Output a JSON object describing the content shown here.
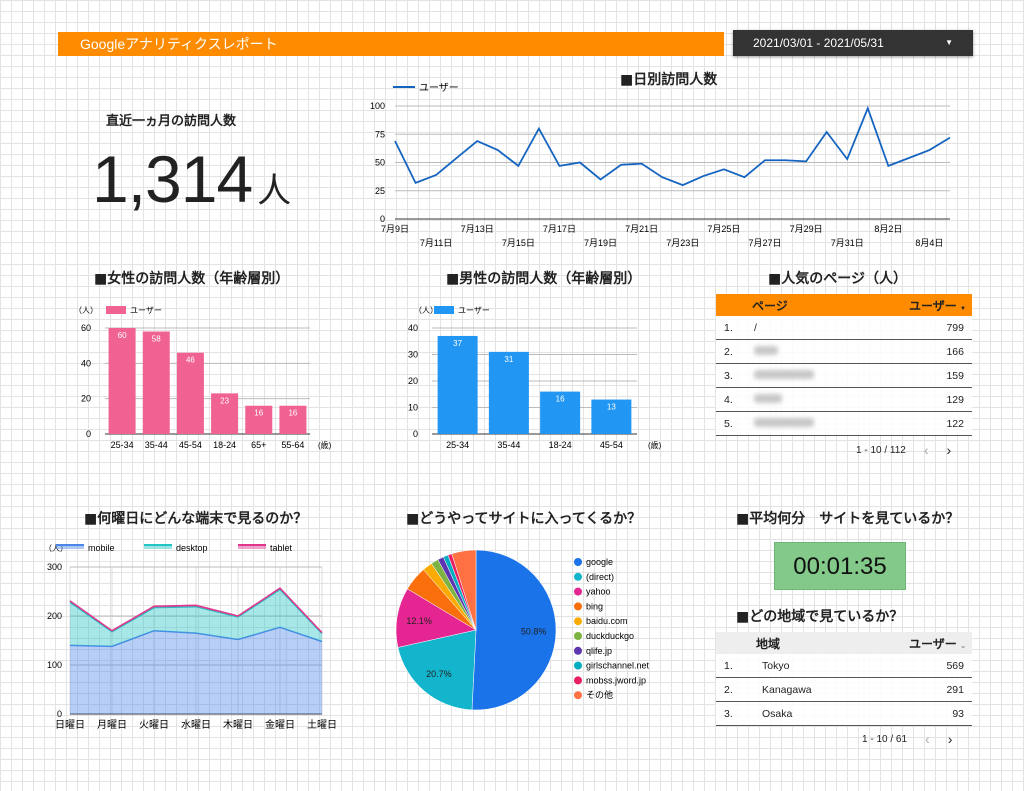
{
  "header": {
    "title": "Googleアナリティクスレポート",
    "date_range": "2021/03/01 - 2021/05/31"
  },
  "kpi": {
    "title": "直近一ヵ月の訪問人数",
    "value": "1,314",
    "unit": "人"
  },
  "daily": {
    "title": "■日別訪問人数",
    "legend": "ユーザー",
    "color": "#1565c0",
    "chart_data": {
      "type": "line",
      "x_upper": [
        "7月9日",
        "7月13日",
        "7月17日",
        "7月21日",
        "7月25日",
        "7月29日",
        "8月2日"
      ],
      "x_lower": [
        "7月11日",
        "7月15日",
        "7月19日",
        "7月23日",
        "7月27日",
        "7月31日",
        "8月4日"
      ],
      "x": [
        "7月9日",
        "7月10日",
        "7月11日",
        "7月12日",
        "7月13日",
        "7月14日",
        "7月15日",
        "7月16日",
        "7月17日",
        "7月18日",
        "7月19日",
        "7月20日",
        "7月21日",
        "7月22日",
        "7月23日",
        "7月24日",
        "7月25日",
        "7月26日",
        "7月27日",
        "7月28日",
        "7月29日",
        "7月30日",
        "7月31日",
        "8月1日",
        "8月2日",
        "8月3日",
        "8月4日",
        "8月5日"
      ],
      "series": [
        {
          "name": "ユーザー",
          "values": [
            69,
            32,
            39,
            54,
            69,
            61,
            47,
            80,
            47,
            50,
            35,
            48,
            49,
            37,
            30,
            38,
            44,
            37,
            52,
            52,
            51,
            77,
            53,
            98,
            47,
            54,
            61,
            72
          ]
        }
      ],
      "ylim": [
        0,
        100
      ],
      "yticks": [
        0,
        25,
        50,
        75,
        100
      ]
    }
  },
  "female": {
    "title": "■女性の訪問人数（年齢層別）",
    "unit_label": "（人）",
    "x_unit": "(歳)",
    "legend": "ユーザー",
    "color": "#f06292",
    "chart_data": {
      "type": "bar",
      "categories": [
        "25-34",
        "35-44",
        "45-54",
        "18-24",
        "65+",
        "55-64"
      ],
      "values": [
        60,
        58,
        46,
        23,
        16,
        16
      ],
      "ylim": [
        0,
        60
      ],
      "yticks": [
        0,
        20,
        40,
        60
      ]
    }
  },
  "male": {
    "title": "■男性の訪問人数（年齢層別）",
    "unit_label": "（人）",
    "x_unit": "(歳)",
    "legend": "ユーザー",
    "color": "#2196f3",
    "chart_data": {
      "type": "bar",
      "categories": [
        "25-34",
        "35-44",
        "18-24",
        "45-54"
      ],
      "values": [
        37,
        31,
        16,
        13
      ],
      "ylim": [
        0,
        40
      ],
      "yticks": [
        0,
        10,
        20,
        30,
        40
      ]
    }
  },
  "pages": {
    "title": "■人気のページ（人）",
    "col_page": "ページ",
    "col_users": "ユーザー",
    "sort_icon": "▼",
    "rows": [
      {
        "num": "1.",
        "page": "/",
        "users": "799",
        "hidden": false
      },
      {
        "num": "2.",
        "page": "",
        "users": "166",
        "hidden": true
      },
      {
        "num": "3.",
        "page": "",
        "users": "159",
        "hidden": true
      },
      {
        "num": "4.",
        "page": "",
        "users": "129",
        "hidden": true
      },
      {
        "num": "5.",
        "page": "",
        "users": "122",
        "hidden": true
      }
    ],
    "pagination": "1 - 10 / 112",
    "header_color": "#ff8c00"
  },
  "weekday": {
    "title": "■何曜日にどんな端末で見るのか？",
    "unit_label": "（人）",
    "chart_data": {
      "type": "area",
      "categories": [
        "日曜日",
        "月曜日",
        "火曜日",
        "水曜日",
        "木曜日",
        "金曜日",
        "土曜日"
      ],
      "series": [
        {
          "name": "mobile",
          "values": [
            140,
            138,
            170,
            165,
            152,
            177,
            148
          ],
          "color": "#4a86e8"
        },
        {
          "name": "desktop",
          "values": [
            88,
            30,
            47,
            54,
            46,
            77,
            16
          ],
          "color": "#22c4c4"
        },
        {
          "name": "tablet",
          "values": [
            3,
            2,
            3,
            3,
            2,
            3,
            2
          ],
          "color": "#e0368c"
        }
      ],
      "ylim": [
        0,
        300
      ],
      "yticks": [
        0,
        100,
        200,
        300
      ]
    }
  },
  "source": {
    "title": "■どうやってサイトに入ってくるか？",
    "chart_data": {
      "type": "pie",
      "labels": [
        "google",
        "(direct)",
        "yahoo",
        "bing",
        "baidu.com",
        "duckduckgo",
        "qlife.jp",
        "girlschannel.net",
        "mobss.jword.jp",
        "その他"
      ],
      "values": [
        50.8,
        20.7,
        12.1,
        5.0,
        2.0,
        1.5,
        1.2,
        1.0,
        0.8,
        4.9
      ],
      "colors": [
        "#1a73e8",
        "#12b5cb",
        "#e52592",
        "#f96f0c",
        "#f9ab00",
        "#7cb342",
        "#5e35b1",
        "#00acc1",
        "#e91e63",
        "#ff7043"
      ],
      "shown_labels": [
        "50.8%",
        "20.7%",
        "12.1%"
      ]
    }
  },
  "avg_time": {
    "title": "■平均何分　サイトを見ているか？",
    "value": "00:01:35"
  },
  "region": {
    "title": "■どの地域で見ているか？",
    "col_region": "地域",
    "col_users": "ユーザー",
    "rows": [
      {
        "num": "1.",
        "region": "Tokyo",
        "users": "569"
      },
      {
        "num": "2.",
        "region": "Kanagawa",
        "users": "291"
      },
      {
        "num": "3.",
        "region": "Osaka",
        "users": "93"
      }
    ],
    "pagination": "1 - 10 / 61",
    "header_color": "#eeeeee"
  }
}
